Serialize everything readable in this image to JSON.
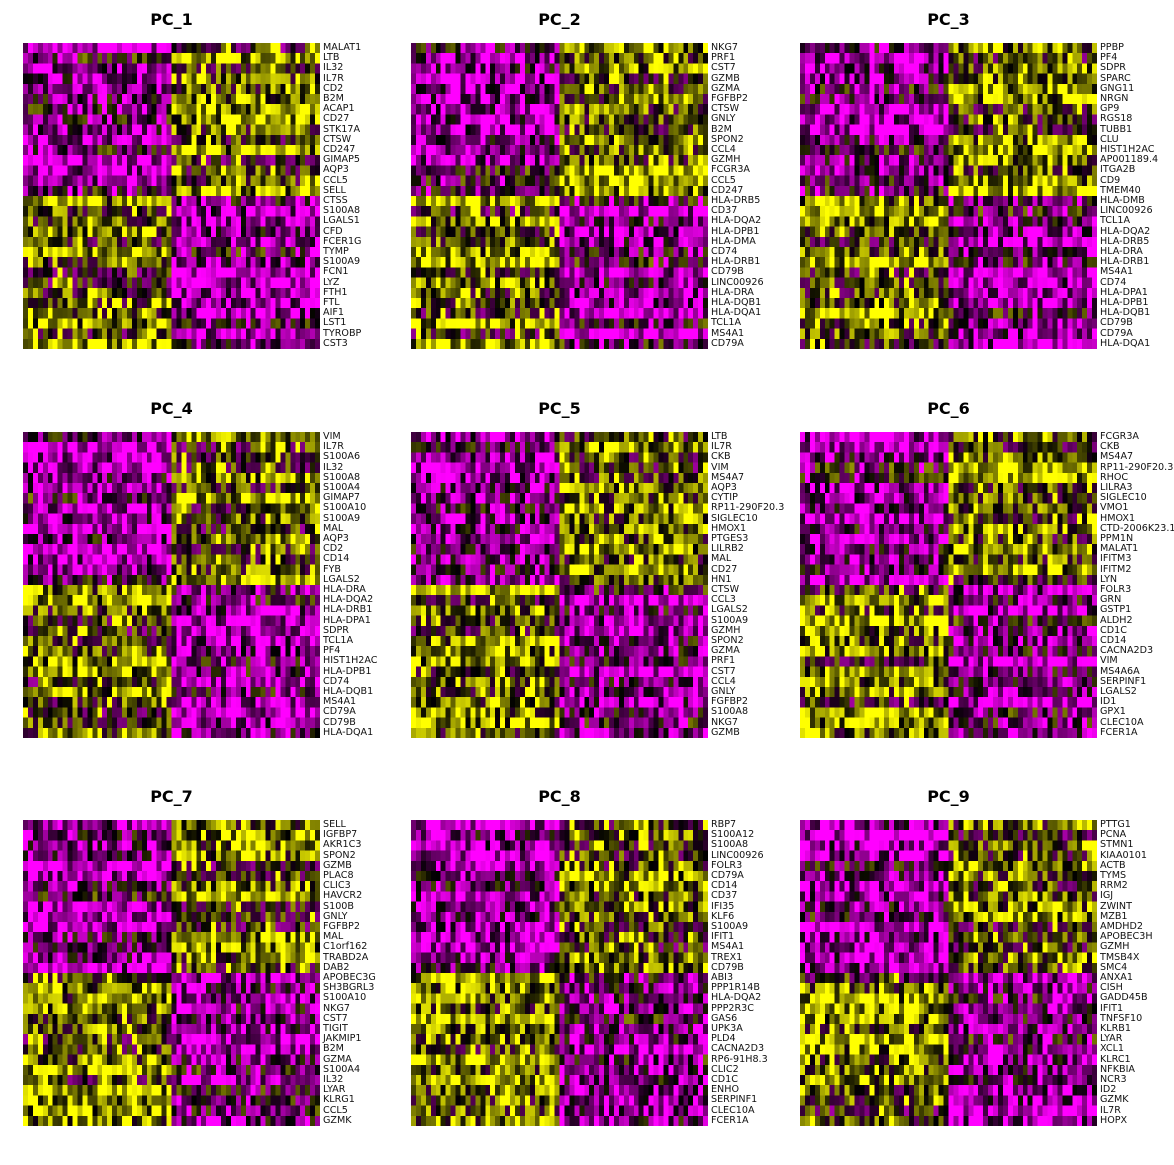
{
  "chart_data": {
    "type": "heatmap",
    "colorscale": [
      "#FF00FF",
      "#000000",
      "#FFFF00"
    ],
    "panels": [
      {
        "title": "PC_1",
        "split": 0.5,
        "genes": [
          "MALAT1",
          "LTB",
          "IL32",
          "IL7R",
          "CD2",
          "B2M",
          "ACAP1",
          "CD27",
          "STK17A",
          "CTSW",
          "CD247",
          "GIMAP5",
          "AQP3",
          "CCL5",
          "SELL",
          "CTSS",
          "S100A8",
          "LGALS1",
          "CFD",
          "FCER1G",
          "TYMP",
          "S100A9",
          "FCN1",
          "LYZ",
          "FTH1",
          "FTL",
          "AIF1",
          "LST1",
          "TYROBP",
          "CST3"
        ]
      },
      {
        "title": "PC_2",
        "split": 0.5,
        "genes": [
          "NKG7",
          "PRF1",
          "CST7",
          "GZMB",
          "GZMA",
          "FGFBP2",
          "CTSW",
          "GNLY",
          "B2M",
          "SPON2",
          "CCL4",
          "GZMH",
          "FCGR3A",
          "CCL5",
          "CD247",
          "HLA-DRB5",
          "CD37",
          "HLA-DQA2",
          "HLA-DPB1",
          "HLA-DMA",
          "CD74",
          "HLA-DRB1",
          "CD79B",
          "LINC00926",
          "HLA-DRA",
          "HLA-DQB1",
          "HLA-DQA1",
          "TCL1A",
          "MS4A1",
          "CD79A"
        ]
      },
      {
        "title": "PC_3",
        "split": 0.5,
        "genes": [
          "PPBP",
          "PF4",
          "SDPR",
          "SPARC",
          "GNG11",
          "NRGN",
          "GP9",
          "RGS18",
          "TUBB1",
          "CLU",
          "HIST1H2AC",
          "AP001189.4",
          "ITGA2B",
          "CD9",
          "TMEM40",
          "HLA-DMB",
          "LINC00926",
          "TCL1A",
          "HLA-DQA2",
          "HLA-DRB5",
          "HLA-DRA",
          "HLA-DRB1",
          "MS4A1",
          "CD74",
          "HLA-DPA1",
          "HLA-DPB1",
          "HLA-DQB1",
          "CD79B",
          "CD79A",
          "HLA-DQA1"
        ]
      },
      {
        "title": "PC_4",
        "split": 0.5,
        "genes": [
          "VIM",
          "IL7R",
          "S100A6",
          "IL32",
          "S100A8",
          "S100A4",
          "GIMAP7",
          "S100A10",
          "S100A9",
          "MAL",
          "AQP3",
          "CD2",
          "CD14",
          "FYB",
          "LGALS2",
          "HLA-DRA",
          "HLA-DQA2",
          "HLA-DRB1",
          "HLA-DPA1",
          "SDPR",
          "TCL1A",
          "PF4",
          "HIST1H2AC",
          "HLA-DPB1",
          "CD74",
          "HLA-DQB1",
          "MS4A1",
          "CD79A",
          "CD79B",
          "HLA-DQA1"
        ]
      },
      {
        "title": "PC_5",
        "split": 0.5,
        "genes": [
          "LTB",
          "IL7R",
          "CKB",
          "VIM",
          "MS4A7",
          "AQP3",
          "CYTIP",
          "RP11-290F20.3",
          "SIGLEC10",
          "HMOX1",
          "PTGES3",
          "LILRB2",
          "MAL",
          "CD27",
          "HN1",
          "CTSW",
          "CCL3",
          "LGALS2",
          "S100A9",
          "GZMH",
          "SPON2",
          "GZMA",
          "PRF1",
          "CST7",
          "CCL4",
          "GNLY",
          "FGFBP2",
          "S100A8",
          "NKG7",
          "GZMB"
        ]
      },
      {
        "title": "PC_6",
        "split": 0.5,
        "genes": [
          "FCGR3A",
          "CKB",
          "MS4A7",
          "RP11-290F20.3",
          "RHOC",
          "LILRA3",
          "SIGLEC10",
          "VMO1",
          "HMOX1",
          "CTD-2006K23.1",
          "PPM1N",
          "MALAT1",
          "IFITM3",
          "IFITM2",
          "LYN",
          "FOLR3",
          "GRN",
          "GSTP1",
          "ALDH2",
          "CD1C",
          "CD14",
          "CACNA2D3",
          "VIM",
          "MS4A6A",
          "SERPINF1",
          "LGALS2",
          "ID1",
          "GPX1",
          "CLEC10A",
          "FCER1A"
        ]
      },
      {
        "title": "PC_7",
        "split": 0.5,
        "genes": [
          "SELL",
          "IGFBP7",
          "AKR1C3",
          "SPON2",
          "GZMB",
          "PLAC8",
          "CLIC3",
          "HAVCR2",
          "S100B",
          "GNLY",
          "FGFBP2",
          "MAL",
          "C1orf162",
          "TRABD2A",
          "DAB2",
          "APOBEC3G",
          "SH3BGRL3",
          "S100A10",
          "NKG7",
          "CST7",
          "TIGIT",
          "JAKMIP1",
          "B2M",
          "GZMA",
          "S100A4",
          "IL32",
          "LYAR",
          "KLRG1",
          "CCL5",
          "GZMK"
        ]
      },
      {
        "title": "PC_8",
        "split": 0.5,
        "genes": [
          "RBP7",
          "S100A12",
          "S100A8",
          "LINC00926",
          "FOLR3",
          "CD79A",
          "CD14",
          "CD37",
          "IFI35",
          "KLF6",
          "S100A9",
          "IFIT1",
          "MS4A1",
          "TREX1",
          "CD79B",
          "ABI3",
          "PPP1R14B",
          "HLA-DQA2",
          "PPP2R3C",
          "GAS6",
          "UPK3A",
          "PLD4",
          "CACNA2D3",
          "RP6-91H8.3",
          "CLIC2",
          "CD1C",
          "ENHO",
          "SERPINF1",
          "CLEC10A",
          "FCER1A"
        ]
      },
      {
        "title": "PC_9",
        "split": 0.5,
        "genes": [
          "PTTG1",
          "PCNA",
          "STMN1",
          "KIAA0101",
          "ACTB",
          "TYMS",
          "RRM2",
          "IGJ",
          "ZWINT",
          "MZB1",
          "AMDHD2",
          "APOBEC3H",
          "GZMH",
          "TMSB4X",
          "SMC4",
          "ANXA1",
          "CISH",
          "GADD45B",
          "IFIT1",
          "TNFSF10",
          "KLRB1",
          "LYAR",
          "XCL1",
          "KLRC1",
          "NFKBIA",
          "NCR3",
          "ID2",
          "GZMK",
          "IL7R",
          "HOPX"
        ]
      }
    ]
  }
}
